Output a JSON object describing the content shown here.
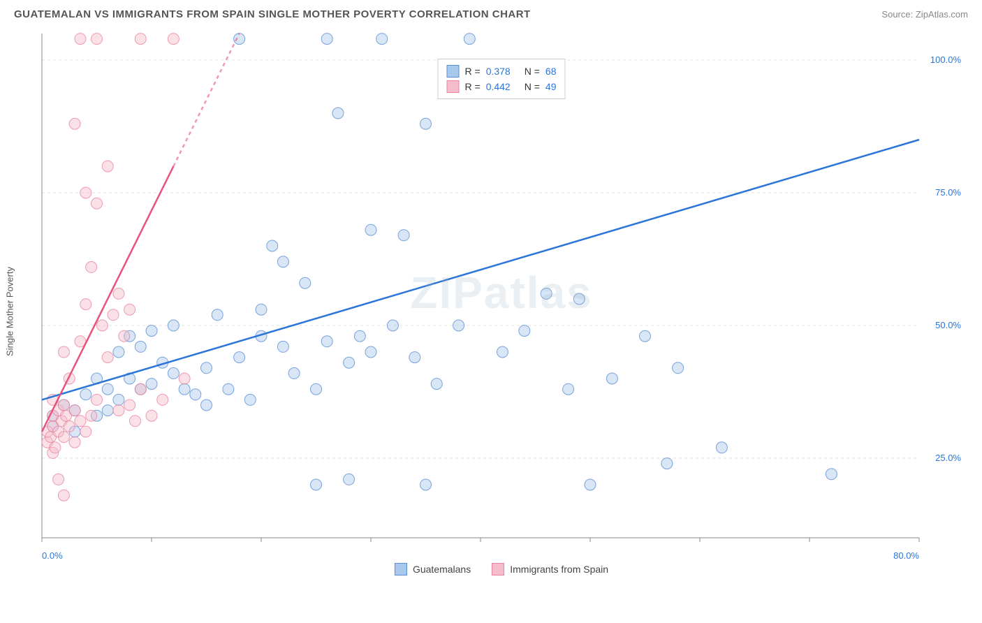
{
  "header": {
    "title": "GUATEMALAN VS IMMIGRANTS FROM SPAIN SINGLE MOTHER POVERTY CORRELATION CHART",
    "source_label": "Source:",
    "source_value": "ZipAtlas.com"
  },
  "watermark": "ZIPatlas",
  "chart": {
    "type": "scatter",
    "y_axis_label": "Single Mother Poverty",
    "xlim": [
      0,
      80
    ],
    "ylim": [
      10,
      105
    ],
    "x_ticks": [
      0,
      10,
      20,
      30,
      40,
      50,
      60,
      70,
      80
    ],
    "x_tick_labels": {
      "0": "0.0%",
      "80": "80.0%"
    },
    "y_ticks": [
      25,
      50,
      75,
      100
    ],
    "y_tick_labels": {
      "25": "25.0%",
      "50": "50.0%",
      "75": "75.0%",
      "100": "100.0%"
    },
    "background_color": "#ffffff",
    "grid_color": "#e0e0e0",
    "grid_dash": "4,4",
    "axis_color": "#888888",
    "tick_label_color": "#2b74d8",
    "marker_radius": 8,
    "marker_opacity": 0.45,
    "series": [
      {
        "name": "Guatemalans",
        "fill_color": "#a8c8ec",
        "stroke_color": "#5b8fd4",
        "points": [
          [
            1,
            31
          ],
          [
            1,
            33
          ],
          [
            2,
            35
          ],
          [
            3,
            30
          ],
          [
            3,
            34
          ],
          [
            4,
            37
          ],
          [
            5,
            33
          ],
          [
            5,
            40
          ],
          [
            6,
            34
          ],
          [
            6,
            38
          ],
          [
            7,
            36
          ],
          [
            7,
            45
          ],
          [
            8,
            40
          ],
          [
            8,
            48
          ],
          [
            9,
            38
          ],
          [
            9,
            46
          ],
          [
            10,
            39
          ],
          [
            10,
            49
          ],
          [
            11,
            43
          ],
          [
            12,
            50
          ],
          [
            12,
            41
          ],
          [
            13,
            38
          ],
          [
            14,
            37
          ],
          [
            15,
            42
          ],
          [
            15,
            35
          ],
          [
            16,
            52
          ],
          [
            17,
            38
          ],
          [
            18,
            44
          ],
          [
            18,
            104
          ],
          [
            19,
            36
          ],
          [
            20,
            53
          ],
          [
            20,
            48
          ],
          [
            21,
            65
          ],
          [
            22,
            46
          ],
          [
            22,
            62
          ],
          [
            23,
            41
          ],
          [
            24,
            58
          ],
          [
            25,
            38
          ],
          [
            25,
            20
          ],
          [
            26,
            47
          ],
          [
            26,
            104
          ],
          [
            27,
            90
          ],
          [
            28,
            43
          ],
          [
            28,
            21
          ],
          [
            29,
            48
          ],
          [
            30,
            45
          ],
          [
            30,
            68
          ],
          [
            31,
            104
          ],
          [
            32,
            50
          ],
          [
            33,
            67
          ],
          [
            34,
            44
          ],
          [
            35,
            20
          ],
          [
            35,
            88
          ],
          [
            36,
            39
          ],
          [
            38,
            50
          ],
          [
            39,
            104
          ],
          [
            42,
            45
          ],
          [
            44,
            49
          ],
          [
            46,
            56
          ],
          [
            48,
            38
          ],
          [
            49,
            55
          ],
          [
            50,
            20
          ],
          [
            52,
            40
          ],
          [
            55,
            48
          ],
          [
            57,
            24
          ],
          [
            58,
            42
          ],
          [
            62,
            27
          ],
          [
            72,
            22
          ]
        ],
        "trend": {
          "x1": 0,
          "y1": 36,
          "x2": 80,
          "y2": 85,
          "color": "#2b74d8",
          "width": 2.5
        }
      },
      {
        "name": "Immigrants from Spain",
        "fill_color": "#f5bccb",
        "stroke_color": "#e8849f",
        "points": [
          [
            0.5,
            28
          ],
          [
            0.5,
            30
          ],
          [
            0.8,
            29
          ],
          [
            1,
            26
          ],
          [
            1,
            31
          ],
          [
            1,
            33
          ],
          [
            1,
            36
          ],
          [
            1.2,
            27
          ],
          [
            1.5,
            30
          ],
          [
            1.5,
            34
          ],
          [
            1.5,
            21
          ],
          [
            1.8,
            32
          ],
          [
            2,
            18
          ],
          [
            2,
            29
          ],
          [
            2,
            35
          ],
          [
            2,
            45
          ],
          [
            2.2,
            33
          ],
          [
            2.5,
            31
          ],
          [
            2.5,
            40
          ],
          [
            3,
            28
          ],
          [
            3,
            34
          ],
          [
            3,
            88
          ],
          [
            3.5,
            32
          ],
          [
            3.5,
            47
          ],
          [
            3.5,
            104
          ],
          [
            4,
            30
          ],
          [
            4,
            54
          ],
          [
            4,
            75
          ],
          [
            4.5,
            33
          ],
          [
            4.5,
            61
          ],
          [
            5,
            36
          ],
          [
            5,
            73
          ],
          [
            5,
            104
          ],
          [
            5.5,
            50
          ],
          [
            6,
            44
          ],
          [
            6,
            80
          ],
          [
            6.5,
            52
          ],
          [
            7,
            56
          ],
          [
            7,
            34
          ],
          [
            7.5,
            48
          ],
          [
            8,
            35
          ],
          [
            8,
            53
          ],
          [
            8.5,
            32
          ],
          [
            9,
            38
          ],
          [
            9,
            104
          ],
          [
            10,
            33
          ],
          [
            11,
            36
          ],
          [
            12,
            104
          ],
          [
            13,
            40
          ]
        ],
        "trend": {
          "x1": 0,
          "y1": 30,
          "x2": 12,
          "y2": 80,
          "extrapolate_x2": 18,
          "extrapolate_y2": 105,
          "color": "#e8537b",
          "width": 2.5
        }
      }
    ],
    "legend_stats": [
      {
        "series_idx": 0,
        "R": "0.378",
        "N": "68"
      },
      {
        "series_idx": 1,
        "R": "0.442",
        "N": "49"
      }
    ],
    "legend_bottom": [
      {
        "series_idx": 0,
        "label": "Guatemalans"
      },
      {
        "series_idx": 1,
        "label": "Immigrants from Spain"
      }
    ]
  }
}
